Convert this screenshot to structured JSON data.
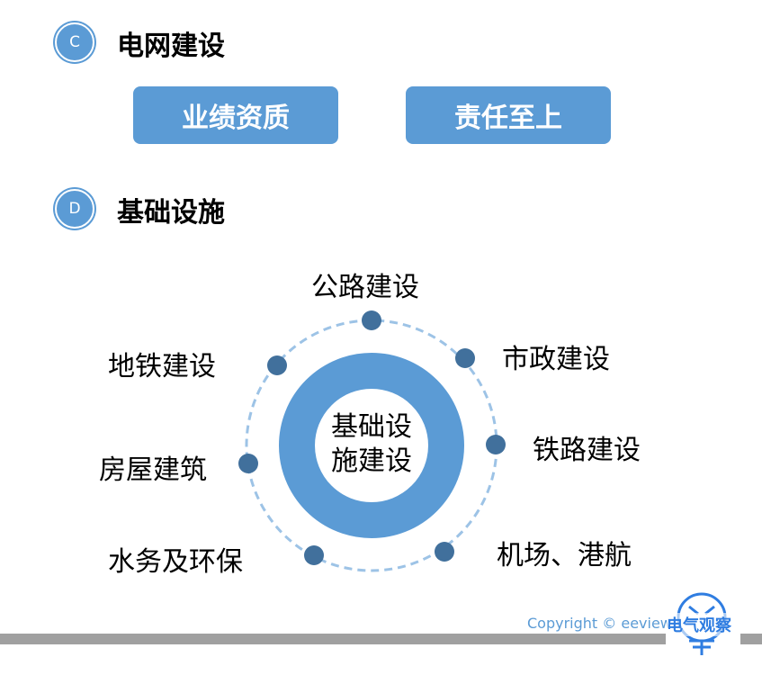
{
  "sections": [
    {
      "badge": "C",
      "title": "电网建设"
    },
    {
      "badge": "D",
      "title": "基础设施"
    }
  ],
  "buttons": [
    "业绩资质",
    "责任至上"
  ],
  "diagram": {
    "center": [
      "基础设",
      "施建设"
    ],
    "items": [
      "公路建设",
      "市政建设",
      "铁路建设",
      "机场、港航",
      "水务及环保",
      "房屋建筑",
      "地铁建设"
    ]
  },
  "footer": {
    "copyright": "Copyright © eeview.",
    "logo_text": "电气观察"
  },
  "colors": {
    "accent": "#5b9bd5",
    "dot": "#41709c",
    "dash": "#9dc3e6",
    "bar": "#a0a0a0"
  }
}
